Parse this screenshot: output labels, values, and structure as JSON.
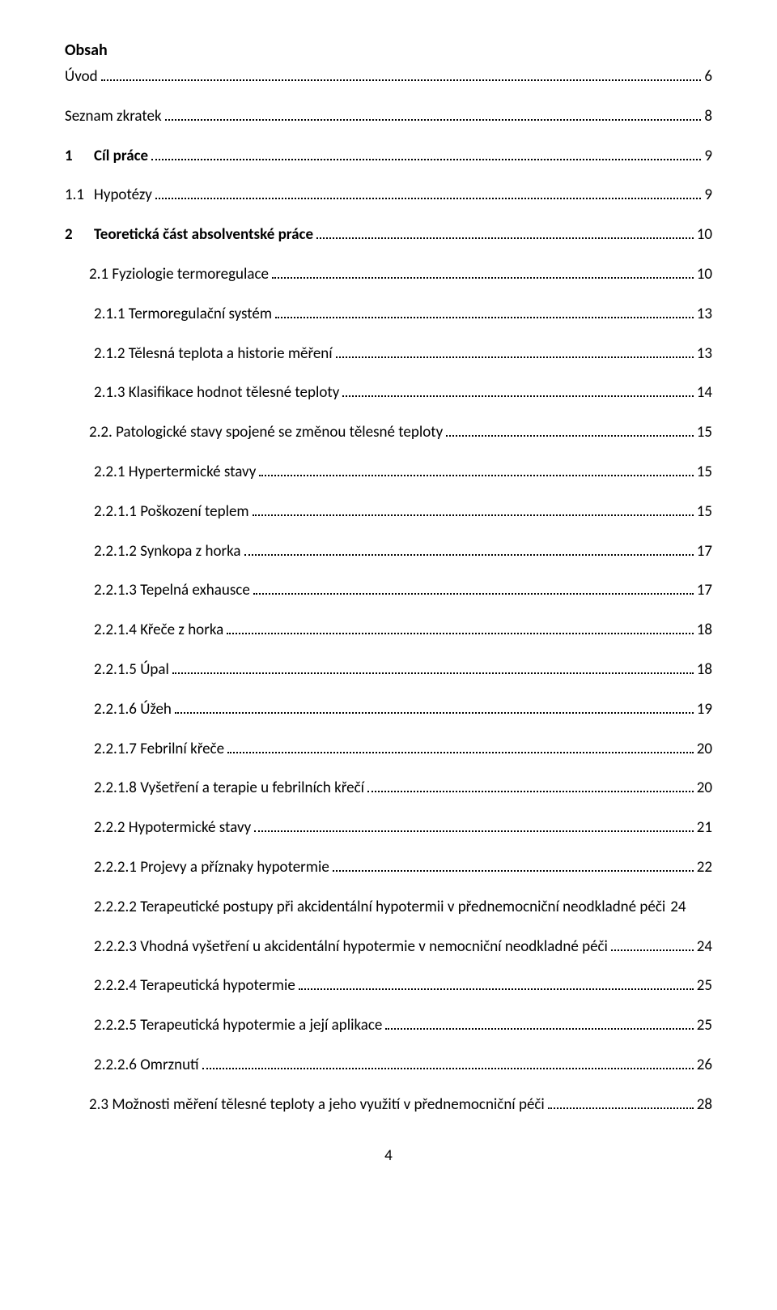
{
  "doc": {
    "title": "Obsah",
    "page_number": "4",
    "entries": [
      {
        "indent": 0,
        "number": "",
        "label": "Úvod",
        "page": "6",
        "bold": false
      },
      {
        "indent": 0,
        "number": "",
        "label": "Seznam zkratek",
        "page": "8",
        "bold": false
      },
      {
        "indent": 0,
        "number": "1",
        "label": "Cíl práce",
        "page": "9",
        "bold": true,
        "hasNumber": true
      },
      {
        "indent": 0,
        "number": "1.1",
        "label": "Hypotézy",
        "page": "9",
        "bold": false,
        "hasNumber": true,
        "numpad": true
      },
      {
        "indent": 0,
        "number": "2",
        "label": "Teoretická část absolventské práce",
        "page": "10",
        "bold": true,
        "hasNumber": true
      },
      {
        "indent": 1,
        "number": "",
        "label": "2.1 Fyziologie termoregulace",
        "page": "10"
      },
      {
        "indent": 2,
        "number": "",
        "label": "2.1.1 Termoregulační systém",
        "page": "13"
      },
      {
        "indent": 2,
        "number": "",
        "label": "2.1.2 Tělesná teplota a historie měření",
        "page": "13"
      },
      {
        "indent": 2,
        "number": "",
        "label": "2.1.3 Klasifikace hodnot tělesné teploty",
        "page": "14"
      },
      {
        "indent": 1,
        "number": "",
        "label": "2.2. Patologické stavy spojené se změnou tělesné teploty",
        "page": "15"
      },
      {
        "indent": 2,
        "number": "",
        "label": "2.2.1 Hypertermické stavy",
        "page": "15"
      },
      {
        "indent": 3,
        "number": "",
        "label": "2.2.1.1 Poškození teplem",
        "page": "15"
      },
      {
        "indent": 3,
        "number": "",
        "label": "2.2.1.2 Synkopa z horka",
        "page": "17"
      },
      {
        "indent": 3,
        "number": "",
        "label": "2.2.1.3 Tepelná exhausce",
        "page": "17"
      },
      {
        "indent": 3,
        "number": "",
        "label": "2.2.1.4 Křeče z horka",
        "page": "18"
      },
      {
        "indent": 3,
        "number": "",
        "label": "2.2.1.5 Úpal",
        "page": "18"
      },
      {
        "indent": 3,
        "number": "",
        "label": "2.2.1.6 Úžeh",
        "page": "19"
      },
      {
        "indent": 3,
        "number": "",
        "label": "2.2.1.7  Febrilní křeče",
        "page": "20"
      },
      {
        "indent": 3,
        "number": "",
        "label": "2.2.1.8  Vyšetření a terapie u febrilních křečí",
        "page": "20"
      },
      {
        "indent": 2,
        "number": "",
        "label": "2.2.2 Hypotermické stavy",
        "page": "21"
      },
      {
        "indent": 3,
        "number": "",
        "label": "2.2.2.1 Projevy a příznaky hypotermie",
        "page": "22"
      },
      {
        "indent": 3,
        "number": "",
        "label": "2.2.2.2 Terapeutické postupy při akcidentální hypotermii v přednemocniční neodkladné péči",
        "page": "24",
        "nodots": true
      },
      {
        "indent": 3,
        "number": "",
        "label": "2.2.2.3 Vhodná vyšetření u akcidentální hypotermie v nemocniční neodkladné péči",
        "page": "24"
      },
      {
        "indent": 3,
        "number": "",
        "label": "2.2.2.4 Terapeutická hypotermie",
        "page": "25"
      },
      {
        "indent": 3,
        "number": "",
        "label": "2.2.2.5 Terapeutická hypotermie a její aplikace",
        "page": "25"
      },
      {
        "indent": 3,
        "number": "",
        "label": "2.2.2.6 Omrznutí",
        "page": "26"
      },
      {
        "indent": 1,
        "number": "",
        "label": "2.3 Možnosti měření tělesné teploty a jeho využití v přednemocniční péči",
        "page": "28"
      }
    ]
  }
}
